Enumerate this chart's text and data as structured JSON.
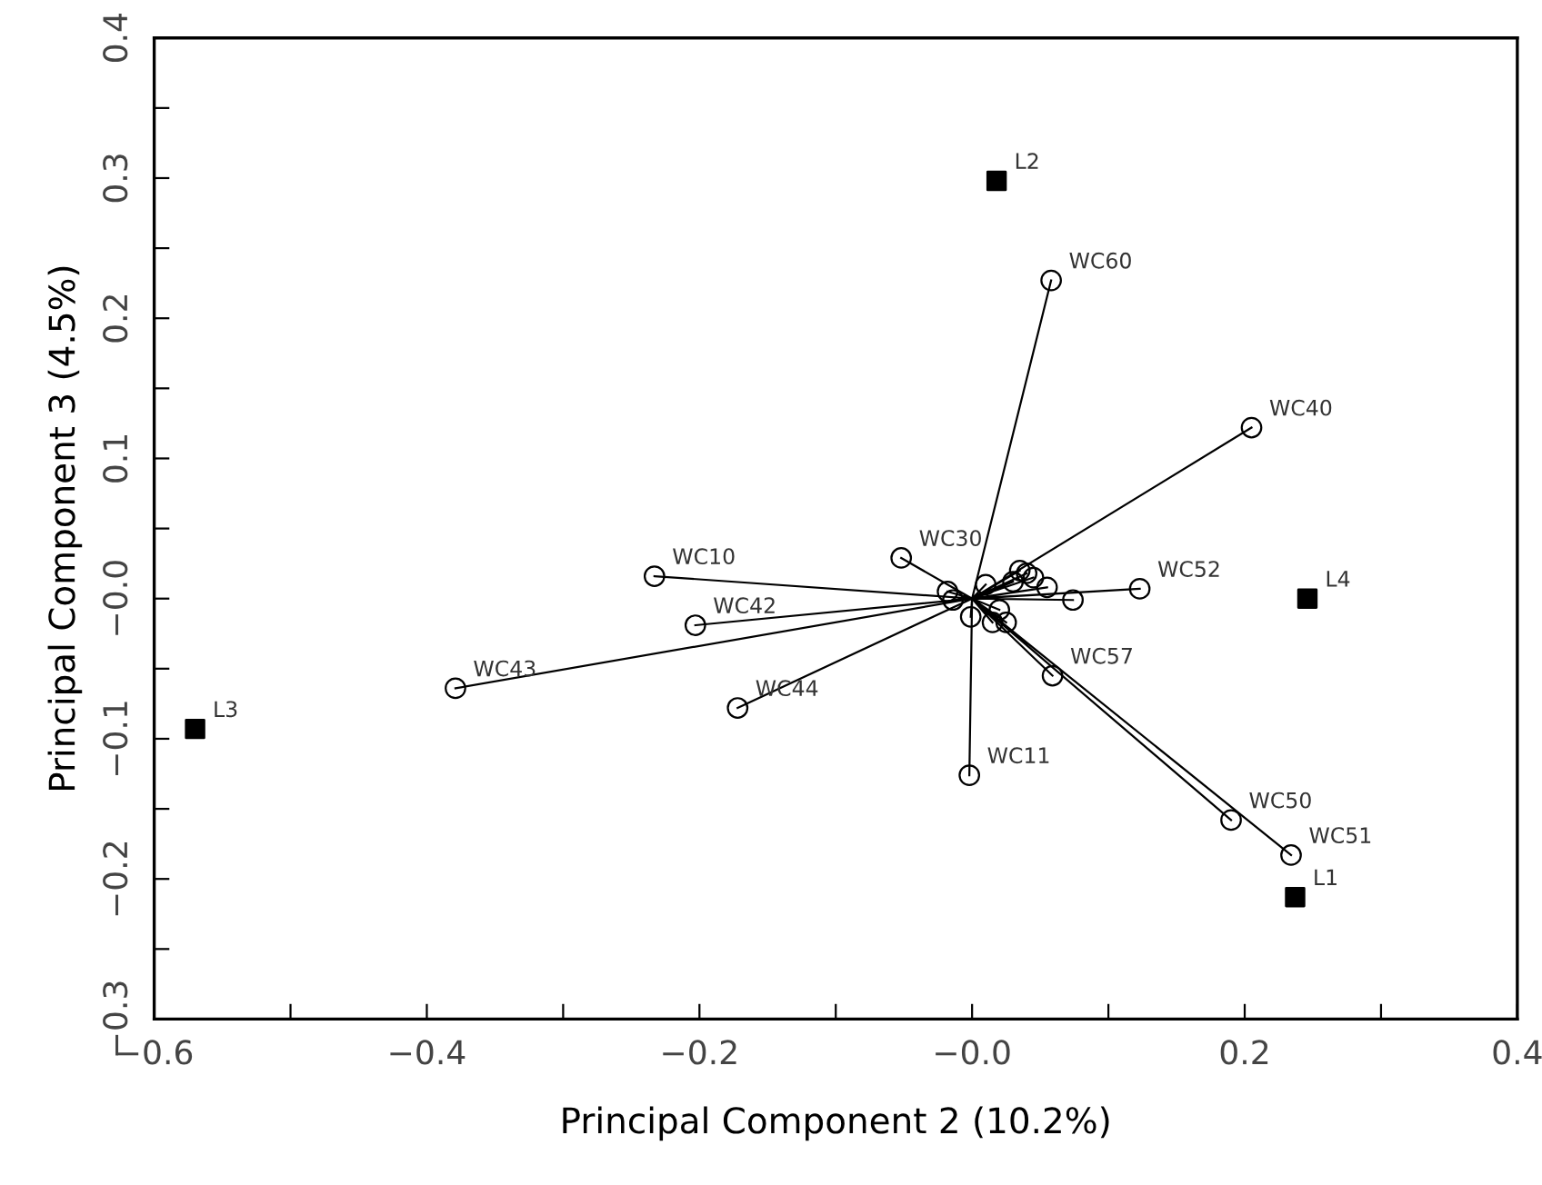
{
  "chart_data": {
    "type": "scatter",
    "xlabel": "Principal Component 2 (10.2%)",
    "ylabel": "Principal Component 3 (4.5%)",
    "xlim": [
      -0.6,
      0.4
    ],
    "ylim": [
      -0.3,
      0.4
    ],
    "xticks": [
      {
        "value": -0.6,
        "label": "−0.6"
      },
      {
        "value": -0.5,
        "label": null
      },
      {
        "value": -0.4,
        "label": "−0.4"
      },
      {
        "value": -0.3,
        "label": null
      },
      {
        "value": -0.2,
        "label": "−0.2"
      },
      {
        "value": -0.1,
        "label": null
      },
      {
        "value": 0,
        "label": "−0.0"
      },
      {
        "value": 0.1,
        "label": null
      },
      {
        "value": 0.2,
        "label": "0.2"
      },
      {
        "value": 0.3,
        "label": null
      },
      {
        "value": 0.4,
        "label": "0.4"
      }
    ],
    "yticks": [
      {
        "value": -0.3,
        "label": "−0.3"
      },
      {
        "value": -0.25,
        "label": null
      },
      {
        "value": -0.2,
        "label": "−0.2"
      },
      {
        "value": -0.15,
        "label": null
      },
      {
        "value": -0.1,
        "label": "−0.1"
      },
      {
        "value": -0.05,
        "label": null
      },
      {
        "value": 0,
        "label": "−0.0"
      },
      {
        "value": 0.05,
        "label": null
      },
      {
        "value": 0.1,
        "label": "0.1"
      },
      {
        "value": 0.15,
        "label": null
      },
      {
        "value": 0.2,
        "label": "0.2"
      },
      {
        "value": 0.25,
        "label": null
      },
      {
        "value": 0.3,
        "label": "0.3"
      },
      {
        "value": 0.35,
        "label": null
      },
      {
        "value": 0.4,
        "label": "0.4"
      }
    ],
    "grid": false,
    "legend": false,
    "series": [
      {
        "type": "line",
        "color": "#000000",
        "marker": "none",
        "line_style": "solid",
        "x": [
          0,
          0.058,
          null,
          0,
          0.205,
          null,
          0,
          0.123,
          null,
          0,
          0.059,
          null,
          0,
          0.19,
          null,
          0,
          0.234,
          null,
          0,
          -0.002,
          null,
          0,
          -0.172,
          null,
          0,
          -0.379,
          null,
          0,
          -0.203,
          null,
          0,
          -0.233,
          null,
          0,
          -0.052,
          null,
          0,
          -0.018,
          null,
          0,
          -0.014,
          null,
          0,
          -0.001,
          null,
          0,
          0.015,
          null,
          0,
          0.025,
          null,
          0,
          0.074,
          null,
          0,
          0.03,
          null,
          0,
          0.045,
          null,
          0,
          0.01,
          null,
          0,
          0.04,
          null,
          0,
          0.055,
          null,
          0,
          0.02,
          null,
          0,
          0.035
        ],
        "values": [
          0,
          0.227,
          null,
          0,
          0.122,
          null,
          0,
          0.007,
          null,
          0,
          -0.055,
          null,
          0,
          -0.158,
          null,
          0,
          -0.183,
          null,
          0,
          -0.126,
          null,
          0,
          -0.078,
          null,
          0,
          -0.064,
          null,
          0,
          -0.019,
          null,
          0,
          0.016,
          null,
          0,
          0.029,
          null,
          0,
          0.005,
          null,
          0,
          -0.001,
          null,
          0,
          -0.013,
          null,
          0,
          -0.017,
          null,
          0,
          -0.017,
          null,
          0,
          -0.001,
          null,
          0,
          0.012,
          null,
          0,
          0.015,
          null,
          0,
          0.01,
          null,
          0,
          0.018,
          null,
          0,
          0.008,
          null,
          0,
          -0.008,
          null,
          0,
          0.02
        ]
      },
      {
        "color": "#000000",
        "marker": "circle",
        "x": [
          0.058,
          0.205,
          0.123,
          0.059,
          0.19,
          0.234,
          -0.002,
          -0.172,
          -0.379,
          -0.203,
          -0.233,
          -0.052,
          -0.018,
          -0.014,
          -0.001,
          0.015,
          0.025,
          0.074,
          0.03,
          0.045,
          0.01,
          0.04,
          0.055,
          0.02,
          0.035
        ],
        "values": [
          0.227,
          0.122,
          0.007,
          -0.055,
          -0.158,
          -0.183,
          -0.126,
          -0.078,
          -0.064,
          -0.019,
          0.016,
          0.029,
          0.005,
          -0.001,
          -0.013,
          -0.017,
          -0.017,
          -0.001,
          0.012,
          0.015,
          0.01,
          0.018,
          0.008,
          -0.008,
          0.02
        ]
      },
      {
        "color": "#000000",
        "marker": "square",
        "x": [
          0.237,
          0.018,
          -0.57,
          0.246
        ],
        "values": [
          -0.213,
          0.298,
          -0.093,
          0.0
        ]
      }
    ],
    "annotations": [
      {
        "text": "WC60",
        "x": 0.058,
        "y": 0.227
      },
      {
        "text": "WC40",
        "x": 0.205,
        "y": 0.122
      },
      {
        "text": "WC52",
        "x": 0.123,
        "y": 0.007
      },
      {
        "text": "WC57",
        "x": 0.059,
        "y": -0.055
      },
      {
        "text": "WC50",
        "x": 0.19,
        "y": -0.158
      },
      {
        "text": "WC51",
        "x": 0.234,
        "y": -0.183
      },
      {
        "text": "WC11",
        "x": -0.002,
        "y": -0.126
      },
      {
        "text": "WC44",
        "x": -0.172,
        "y": -0.078
      },
      {
        "text": "WC43",
        "x": -0.379,
        "y": -0.064
      },
      {
        "text": "WC42",
        "x": -0.203,
        "y": -0.019
      },
      {
        "text": "WC10",
        "x": -0.233,
        "y": 0.016
      },
      {
        "text": "WC30",
        "x": -0.052,
        "y": 0.029
      },
      {
        "text": "L1",
        "x": 0.237,
        "y": -0.213
      },
      {
        "text": "L2",
        "x": 0.018,
        "y": 0.298
      },
      {
        "text": "L3",
        "x": -0.57,
        "y": -0.093
      },
      {
        "text": "L4",
        "x": 0.246,
        "y": 0.0
      }
    ]
  }
}
